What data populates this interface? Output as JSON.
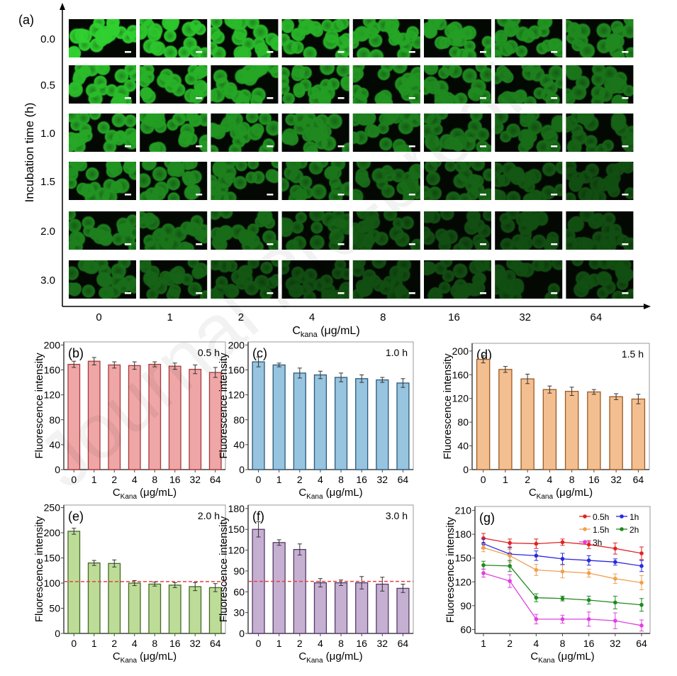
{
  "watermark": "Journal Pre-proof",
  "panel_a": {
    "label": "(a)",
    "ylabel": "Incubation time (h)",
    "xlabel_main": "C",
    "xlabel_sub": "kana",
    "xlabel_unit": " (μg/mL)",
    "rows": [
      "0.0",
      "0.5",
      "1.0",
      "1.5",
      "2.0",
      "3.0"
    ],
    "cols": [
      "0",
      "1",
      "2",
      "4",
      "8",
      "16",
      "32",
      "64"
    ],
    "image_color": "#2fd02f"
  },
  "chart_data": [
    {
      "id": "b",
      "type": "bar",
      "label": "(b)",
      "annotation": "0.5 h",
      "ylabel": "Fluorescence intensity",
      "xlabel_main": "C",
      "xlabel_sub": "Kana",
      "xlabel_unit": " (μg/mL)",
      "categories": [
        "0",
        "1",
        "2",
        "4",
        "8",
        "16",
        "32",
        "64"
      ],
      "values": [
        169,
        174,
        168,
        167,
        169,
        166,
        161,
        156
      ],
      "errors": [
        5,
        6,
        5,
        6,
        4,
        5,
        7,
        8
      ],
      "ylim": [
        0,
        205
      ],
      "yticks": [
        0,
        40,
        80,
        120,
        160,
        200
      ],
      "fill": "#eea6a6",
      "edge": "#a83a3a"
    },
    {
      "id": "c",
      "type": "bar",
      "label": "(c)",
      "annotation": "1.0 h",
      "ylabel": "Fluorescence intensity",
      "xlabel_main": "C",
      "xlabel_sub": "Kana",
      "xlabel_unit": " (μg/mL)",
      "categories": [
        "0",
        "1",
        "2",
        "4",
        "8",
        "16",
        "32",
        "64"
      ],
      "values": [
        173,
        168,
        155,
        152,
        148,
        146,
        144,
        139
      ],
      "errors": [
        8,
        3,
        8,
        6,
        7,
        6,
        4,
        7
      ],
      "ylim": [
        0,
        205
      ],
      "yticks": [
        0,
        40,
        80,
        120,
        160,
        200
      ],
      "fill": "#97c4df",
      "edge": "#2a5a7a"
    },
    {
      "id": "d",
      "type": "bar",
      "label": "(d)",
      "annotation": "1.5 h",
      "ylabel": "Fluorescence intensity",
      "xlabel_main": "C",
      "xlabel_sub": "Kana",
      "xlabel_unit": " (μg/mL)",
      "categories": [
        "0",
        "1",
        "2",
        "4",
        "8",
        "16",
        "32",
        "64"
      ],
      "values": [
        186,
        169,
        153,
        135,
        132,
        131,
        123,
        119
      ],
      "errors": [
        6,
        5,
        8,
        6,
        7,
        4,
        5,
        8
      ],
      "ylim": [
        0,
        213
      ],
      "yticks": [
        0,
        40,
        80,
        120,
        160,
        200
      ],
      "fill": "#f4bf90",
      "edge": "#9a5a22"
    },
    {
      "id": "e",
      "type": "bar",
      "label": "(e)",
      "annotation": "2.0 h",
      "ylabel": "Fluorescence intensity",
      "xlabel_main": "C",
      "xlabel_sub": "Kana",
      "xlabel_unit": " (μg/mL)",
      "categories": [
        "0",
        "1",
        "2",
        "4",
        "8",
        "16",
        "32",
        "64"
      ],
      "values": [
        203,
        140,
        139,
        100,
        98,
        96,
        93,
        91
      ],
      "errors": [
        6,
        5,
        7,
        5,
        4,
        5,
        8,
        8
      ],
      "ylim": [
        0,
        255
      ],
      "yticks": [
        0,
        50,
        100,
        150,
        200,
        250
      ],
      "reference_line": 103,
      "fill": "#bcdc98",
      "edge": "#466a26"
    },
    {
      "id": "f",
      "type": "bar",
      "label": "(f)",
      "annotation": "3.0 h",
      "ylabel": "Fluorescence intensity",
      "xlabel_main": "C",
      "xlabel_sub": "Kana",
      "xlabel_unit": " (μg/mL)",
      "categories": [
        "0",
        "1",
        "2",
        "4",
        "8",
        "16",
        "32",
        "64"
      ],
      "values": [
        150,
        131,
        121,
        73,
        73,
        73,
        71,
        65
      ],
      "errors": [
        11,
        4,
        8,
        6,
        4,
        9,
        10,
        6
      ],
      "ylim": [
        0,
        185
      ],
      "yticks": [
        0,
        30,
        60,
        90,
        120,
        150,
        180
      ],
      "reference_line": 75,
      "fill": "#c6b0d2",
      "edge": "#553a6a"
    },
    {
      "id": "g",
      "type": "line",
      "label": "(g)",
      "ylabel": "Fluorescence intensity",
      "xlabel_main": "C",
      "xlabel_sub": "Kana",
      "xlabel_unit": " (μg/mL)",
      "categories": [
        "1",
        "2",
        "4",
        "8",
        "16",
        "32",
        "64"
      ],
      "ylim": [
        55,
        215
      ],
      "yticks": [
        60,
        90,
        120,
        150,
        180,
        210
      ],
      "legend": "top-right",
      "series": [
        {
          "name": "0.5h",
          "color": "#e02424",
          "marker": "circle",
          "values": [
            175,
            169,
            168,
            170,
            167,
            162,
            156
          ],
          "errors": [
            6,
            5,
            6,
            4,
            5,
            7,
            8
          ]
        },
        {
          "name": "1h",
          "color": "#2a2ae0",
          "marker": "square",
          "values": [
            168,
            155,
            153,
            149,
            147,
            145,
            140
          ],
          "errors": [
            6,
            8,
            6,
            7,
            6,
            4,
            7
          ]
        },
        {
          "name": "1.5h",
          "color": "#f0a050",
          "marker": "triangle",
          "values": [
            163,
            153,
            135,
            133,
            131,
            124,
            119
          ],
          "errors": [
            5,
            8,
            7,
            8,
            5,
            6,
            9
          ]
        },
        {
          "name": "2h",
          "color": "#1f8a1f",
          "marker": "diamond",
          "values": [
            141,
            140,
            100,
            99,
            97,
            94,
            91
          ],
          "errors": [
            5,
            7,
            5,
            3,
            5,
            8,
            8
          ]
        },
        {
          "name": "3h",
          "color": "#e040e0",
          "marker": "star",
          "values": [
            131,
            121,
            73,
            73,
            73,
            71,
            65
          ],
          "errors": [
            5,
            8,
            6,
            5,
            9,
            10,
            7
          ]
        }
      ]
    }
  ]
}
